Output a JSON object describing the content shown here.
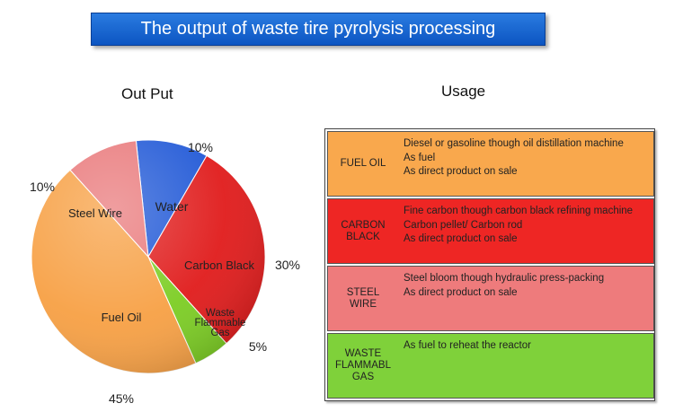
{
  "banner": {
    "title": "The output of waste tire pyrolysis processing"
  },
  "left_title": "Out Put",
  "right_title": "Usage",
  "chart_data": {
    "type": "pie",
    "title": "Out Put",
    "slices": [
      {
        "label": "Water",
        "value": 10,
        "percent_label": "10%",
        "color": "#1f57d6"
      },
      {
        "label": "Carbon Black",
        "value": 30,
        "percent_label": "30%",
        "color": "#e01b1b"
      },
      {
        "label": "Waste Flammable Gas",
        "value": 5,
        "percent_label": "5%",
        "color": "#7ccd23"
      },
      {
        "label": "Fuel Oil",
        "value": 45,
        "percent_label": "45%",
        "color": "#f7a044"
      },
      {
        "label": "Steel Wire",
        "value": 10,
        "percent_label": "10%",
        "color": "#e9787a"
      }
    ]
  },
  "usage": {
    "rows": [
      {
        "label": "FUEL OIL",
        "color": "#f9a84d",
        "text_color": "#222222",
        "lines": [
          "Diesel or gasoline though oil distillation machine",
          "As fuel",
          "As direct product on sale"
        ]
      },
      {
        "label": "CARBON\nBLACK",
        "color": "#ee2624",
        "text_color": "#222222",
        "lines": [
          "Fine carbon though carbon black refining machine",
          "Carbon pellet/ Carbon rod",
          "As direct product on sale"
        ]
      },
      {
        "label": "STEEL\nWIRE",
        "color": "#ee7b7c",
        "text_color": "#222222",
        "lines": [
          "Steel bloom though hydraulic press-packing",
          "As direct product on sale"
        ]
      },
      {
        "label": "WASTE\nFLAMMABL\nGAS",
        "color": "#7fd13a",
        "text_color": "#222222",
        "lines": [
          "As fuel to reheat the reactor"
        ]
      }
    ]
  }
}
